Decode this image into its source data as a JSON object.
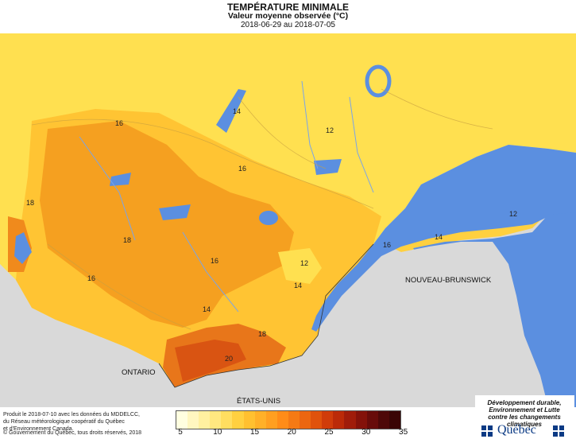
{
  "header": {
    "title": "TEMPÉRATURE MINIMALE",
    "subtitle": "Valeur moyenne observée (°C)",
    "period": "2018-06-29 au 2018-07-05"
  },
  "map_labels": {
    "regions": [
      "ONTARIO",
      "ÉTATS-UNIS",
      "NOUVEAU-BRUNSWICK"
    ],
    "contours": [
      "16",
      "14",
      "12",
      "18",
      "16",
      "16",
      "14",
      "12",
      "14",
      "16",
      "16",
      "12",
      "14",
      "18",
      "20",
      "18"
    ]
  },
  "legend": {
    "ticks": [
      "5",
      "10",
      "15",
      "20",
      "25",
      "30",
      "35"
    ],
    "colors": [
      "#ffffe0",
      "#fff7c0",
      "#fff0a0",
      "#ffe880",
      "#ffde60",
      "#ffd040",
      "#ffc030",
      "#ffb028",
      "#ff9f20",
      "#ff8c18",
      "#f57a14",
      "#ec6610",
      "#e0520c",
      "#d03c0a",
      "#bb2a08",
      "#a01c0a",
      "#84120a",
      "#680c0a",
      "#4e0808",
      "#3a0505"
    ]
  },
  "footer": {
    "credits_line1": "Produit le 2018-07-10 avec les données du MDDELCC,",
    "credits_line2": "du Réseau météorologique coopératif du Québec",
    "credits_line3": "et d'Environnement Canada.",
    "copyright": "© Gouvernement du Québec, tous droits réservés, 2018"
  },
  "ministry": {
    "line1": "Développement durable,",
    "line2": "Environnement et Lutte",
    "line3": "contre les changements",
    "line4": "climatiques",
    "wordmark": "Québec"
  },
  "colors": {
    "water": "#5b8fe0",
    "land_other": "#d9d9d9",
    "cold": "#ffe458",
    "mid": "#ffc433",
    "warm": "#f5a020",
    "hot": "#e8761a",
    "hotter": "#d95412"
  }
}
